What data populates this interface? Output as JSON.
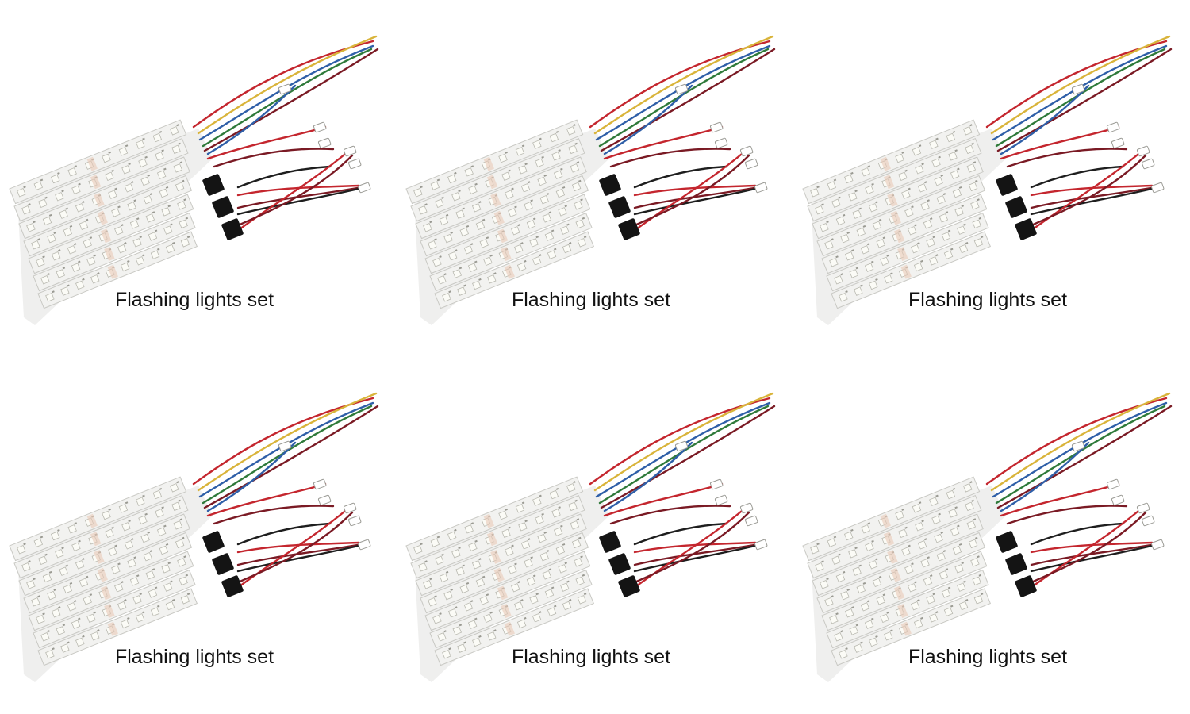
{
  "tiles": [
    {
      "caption": "Flashing lights set"
    },
    {
      "caption": "Flashing lights set"
    },
    {
      "caption": "Flashing lights set"
    },
    {
      "caption": "Flashing lights set"
    },
    {
      "caption": "Flashing lights set"
    },
    {
      "caption": "Flashing lights set"
    }
  ],
  "colors": {
    "background": "#ffffff",
    "board": "#f2f2f0",
    "board_edge": "#c9c9c4",
    "led": "#fbfbf6",
    "wire_red": "#c4262e",
    "wire_dark_red": "#7a1a24",
    "wire_yellow": "#d9b43a",
    "wire_blue": "#2f5fa8",
    "wire_green": "#2f7a3a",
    "wire_black": "#1e1e1e",
    "controller": "#141414",
    "caption_text": "#111111"
  }
}
